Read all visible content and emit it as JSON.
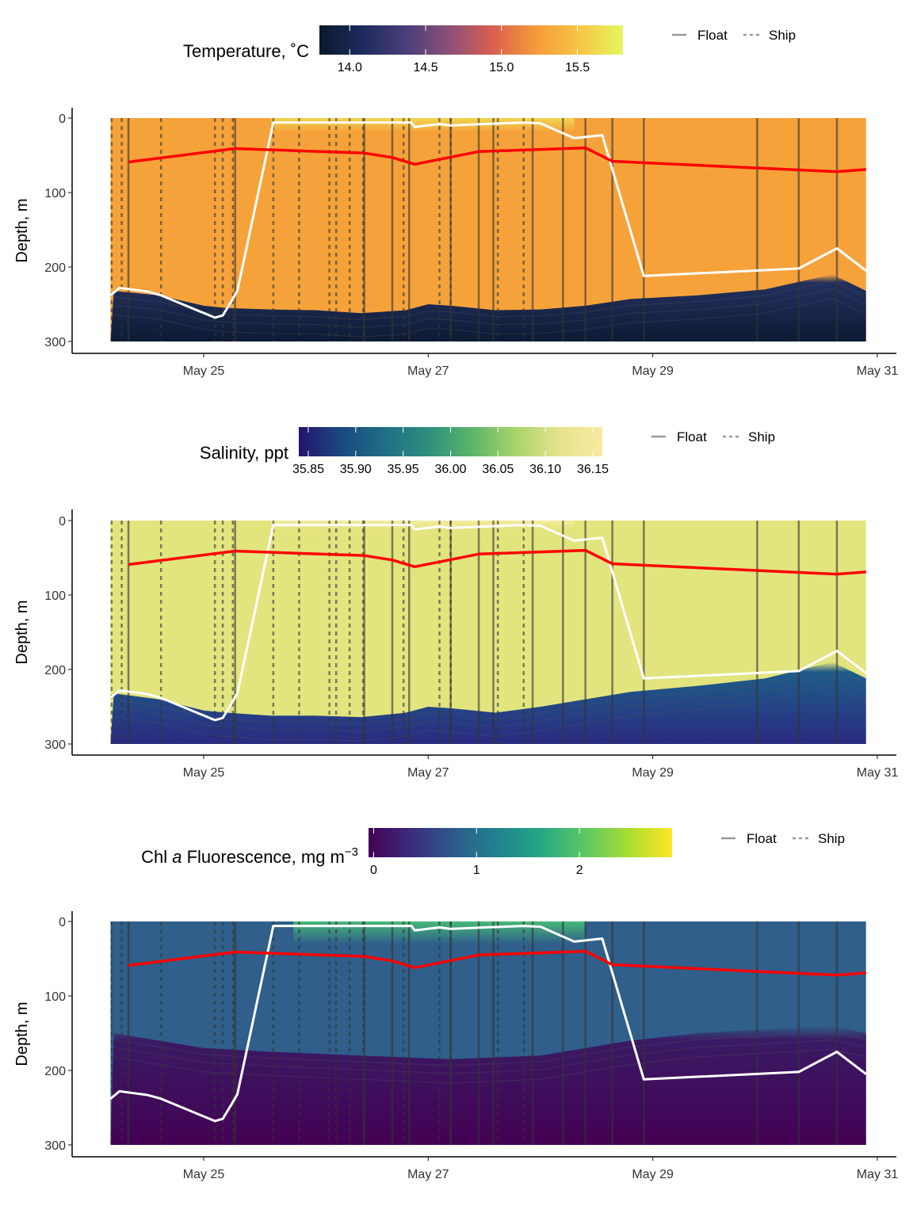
{
  "chart_data": [
    {
      "type": "heatmap",
      "title": "",
      "variable": "temperature",
      "colorbar": {
        "title": "Temperature, ˚C",
        "range": [
          13.8,
          15.8
        ],
        "ticks": [
          "14.0",
          "14.5",
          "15.0",
          "15.5"
        ],
        "tick_values": [
          14.0,
          14.5,
          15.0,
          15.5
        ],
        "colors": [
          "#0b1a2b",
          "#1d2a5e",
          "#4a3f7a",
          "#8d4f7a",
          "#d9604f",
          "#f59b3a",
          "#f7c545",
          "#e6f760"
        ]
      },
      "field": {
        "upper_color": "#f6a23a",
        "deep_color": "#23305f",
        "darkest_color": "#0d1b34",
        "transition_depth": [
          [
            24.2,
            232
          ],
          [
            24.6,
            238
          ],
          [
            25.0,
            252
          ],
          [
            25.2,
            255
          ],
          [
            25.6,
            257
          ],
          [
            26.0,
            258
          ],
          [
            26.4,
            262
          ],
          [
            26.8,
            258
          ],
          [
            27.0,
            250
          ],
          [
            27.2,
            252
          ],
          [
            27.6,
            258
          ],
          [
            28.0,
            257
          ],
          [
            28.4,
            252
          ],
          [
            28.8,
            243
          ],
          [
            29.4,
            238
          ],
          [
            30.0,
            230
          ],
          [
            30.6,
            210
          ],
          [
            30.9,
            232
          ]
        ],
        "surface_patch": {
          "x_range": [
            25.6,
            28.3
          ],
          "depth": 18,
          "color": "#f1d650"
        }
      },
      "y_axis": {
        "label": "Depth, m",
        "range": [
          0,
          300
        ],
        "reversed": true,
        "ticks": [
          "0",
          "100",
          "200",
          "300"
        ],
        "tick_values": [
          0,
          100,
          200,
          300
        ]
      }
    },
    {
      "type": "heatmap",
      "title": "",
      "variable": "salinity",
      "colorbar": {
        "title": "Salinity, ppt",
        "range": [
          35.84,
          36.16
        ],
        "ticks": [
          "35.85",
          "35.90",
          "35.95",
          "36.00",
          "36.05",
          "36.10",
          "36.15"
        ],
        "tick_values": [
          35.85,
          35.9,
          35.95,
          36.0,
          36.05,
          36.1,
          36.15
        ],
        "colors": [
          "#24146d",
          "#1a4a80",
          "#206f86",
          "#2e8f7e",
          "#5bb56a",
          "#a8d46b",
          "#e6e38e",
          "#f9eaa0"
        ]
      },
      "field": {
        "upper_color": "#e2e47e",
        "deep_color": "#1e5d8a",
        "darkest_color": "#2a2a80",
        "transition_depth": [
          [
            24.2,
            232
          ],
          [
            24.6,
            240
          ],
          [
            25.0,
            255
          ],
          [
            25.2,
            258
          ],
          [
            25.6,
            262
          ],
          [
            26.0,
            262
          ],
          [
            26.4,
            264
          ],
          [
            26.8,
            258
          ],
          [
            27.0,
            250
          ],
          [
            27.2,
            252
          ],
          [
            27.6,
            258
          ],
          [
            28.0,
            250
          ],
          [
            28.4,
            240
          ],
          [
            28.8,
            230
          ],
          [
            29.4,
            222
          ],
          [
            30.0,
            212
          ],
          [
            30.6,
            190
          ],
          [
            30.9,
            212
          ]
        ],
        "surface_patch": {
          "x_range": [
            25.6,
            28.3
          ],
          "depth": 12,
          "color": "#f5ec9e"
        }
      },
      "y_axis": {
        "label": "Depth, m",
        "range": [
          0,
          300
        ],
        "reversed": true,
        "ticks": [
          "0",
          "100",
          "200",
          "300"
        ],
        "tick_values": [
          0,
          100,
          200,
          300
        ]
      }
    },
    {
      "type": "heatmap",
      "title": "",
      "variable": "chlorophyll",
      "colorbar": {
        "title_prefix": "Chl ",
        "title_italic": "a",
        "title_suffix": " Fluorescence, mg m",
        "title_superscript": "−3",
        "range": [
          -0.05,
          2.9
        ],
        "ticks": [
          "0",
          "1",
          "2"
        ],
        "tick_values": [
          0,
          1,
          2
        ],
        "colors": [
          "#440154",
          "#3b2c7d",
          "#2d5d8c",
          "#21838e",
          "#26a884",
          "#5cc863",
          "#aadc32",
          "#fde725"
        ]
      },
      "field": {
        "upper_color": "#2f5f8a",
        "deep_color": "#3a1a64",
        "darkest_color": "#440154",
        "transition_depth": [
          [
            24.2,
            150
          ],
          [
            24.6,
            160
          ],
          [
            25.0,
            170
          ],
          [
            25.6,
            175
          ],
          [
            26.4,
            180
          ],
          [
            27.2,
            185
          ],
          [
            28.0,
            180
          ],
          [
            28.8,
            160
          ],
          [
            29.4,
            150
          ],
          [
            30.0,
            145
          ],
          [
            30.6,
            140
          ],
          [
            30.9,
            150
          ]
        ],
        "surface_patch": {
          "x_range": [
            25.8,
            28.4
          ],
          "depth": 30,
          "color": "#46b87a"
        }
      },
      "y_axis": {
        "label": "Depth, m",
        "range": [
          0,
          300
        ],
        "reversed": true,
        "ticks": [
          "0",
          "100",
          "200",
          "300"
        ],
        "tick_values": [
          0,
          100,
          200,
          300
        ]
      }
    }
  ],
  "shared": {
    "x_axis": {
      "range": [
        24.0,
        31.0
      ],
      "ticks": [
        "May 25",
        "May 27",
        "May 29",
        "May 31"
      ],
      "tick_values": [
        25,
        27,
        29,
        31
      ],
      "data_extent": [
        24.17,
        30.9
      ]
    },
    "legend": {
      "placement": "top-right",
      "entries": [
        {
          "label": "Float",
          "style": "solid"
        },
        {
          "label": "Ship",
          "style": "dashed"
        }
      ]
    },
    "float_profiles_x": [
      24.33,
      25.28,
      26.43,
      26.68,
      26.83,
      27.2,
      27.45,
      27.58,
      27.93,
      28.2,
      28.4,
      28.64,
      28.92,
      29.93,
      30.3,
      30.64
    ],
    "ship_profiles_x": [
      24.18,
      24.27,
      24.62,
      25.1,
      25.17,
      25.26,
      25.62,
      25.85,
      26.12,
      26.18,
      26.3,
      26.42,
      26.78,
      27.1,
      27.2,
      27.62,
      27.85
    ],
    "mixed_layer_depth": {
      "color": "#ff0000",
      "points": [
        [
          24.33,
          59
        ],
        [
          25.28,
          41
        ],
        [
          26.43,
          47
        ],
        [
          26.68,
          53
        ],
        [
          26.88,
          62
        ],
        [
          27.45,
          45
        ],
        [
          28.4,
          40
        ],
        [
          28.64,
          58
        ],
        [
          28.92,
          60
        ],
        [
          30.64,
          72
        ],
        [
          30.9,
          69
        ]
      ]
    },
    "boundary_line": {
      "color": "#ffffff",
      "points": [
        [
          24.17,
          238
        ],
        [
          24.25,
          228
        ],
        [
          24.5,
          233
        ],
        [
          24.62,
          238
        ],
        [
          25.1,
          268
        ],
        [
          25.17,
          265
        ],
        [
          25.25,
          245
        ],
        [
          25.3,
          232
        ],
        [
          25.62,
          6
        ],
        [
          26.0,
          6
        ],
        [
          26.85,
          6
        ],
        [
          26.88,
          12
        ],
        [
          27.1,
          8
        ],
        [
          27.2,
          10
        ],
        [
          27.5,
          8
        ],
        [
          27.85,
          6
        ],
        [
          28.0,
          7
        ],
        [
          28.3,
          27
        ],
        [
          28.55,
          23
        ],
        [
          28.92,
          212
        ],
        [
          30.3,
          202
        ],
        [
          30.64,
          175
        ],
        [
          30.9,
          205
        ]
      ]
    }
  }
}
